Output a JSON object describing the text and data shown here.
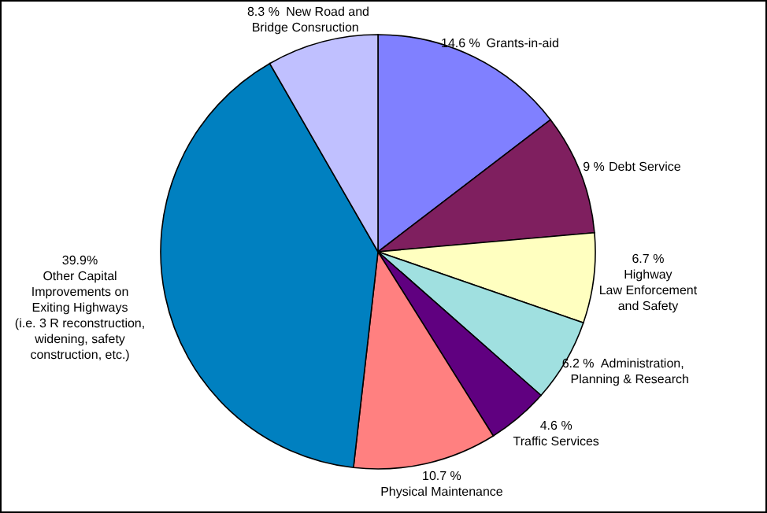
{
  "chart_data": {
    "type": "pie",
    "categories": [
      "Grants-in-aid",
      "Debt Service",
      "Highway\nLaw Enforcement\nand Safety",
      "Administration,\nPlanning & Research",
      "Traffic Services",
      "Physical Maintenance",
      "Other Capital\nImprovements on\nExiting Highways\n(i.e. 3 R reconstruction,\nwidening, safety\nconstruction, etc.)",
      "New Road and\nBridge Consruction"
    ],
    "values": [
      14.6,
      9,
      6.7,
      6.2,
      4.6,
      10.7,
      39.9,
      8.3
    ],
    "colors": [
      "#8080ff",
      "#7f1f5f",
      "#ffffc0",
      "#a0e0e0",
      "#600080",
      "#ff8080",
      "#0080c0",
      "#c0c0ff"
    ],
    "value_labels": [
      "14.6 %",
      "9 %",
      "6.7 %",
      "6.2 %",
      "4.6 %",
      "10.7 %",
      "39.9%",
      "8.3 %"
    ]
  }
}
